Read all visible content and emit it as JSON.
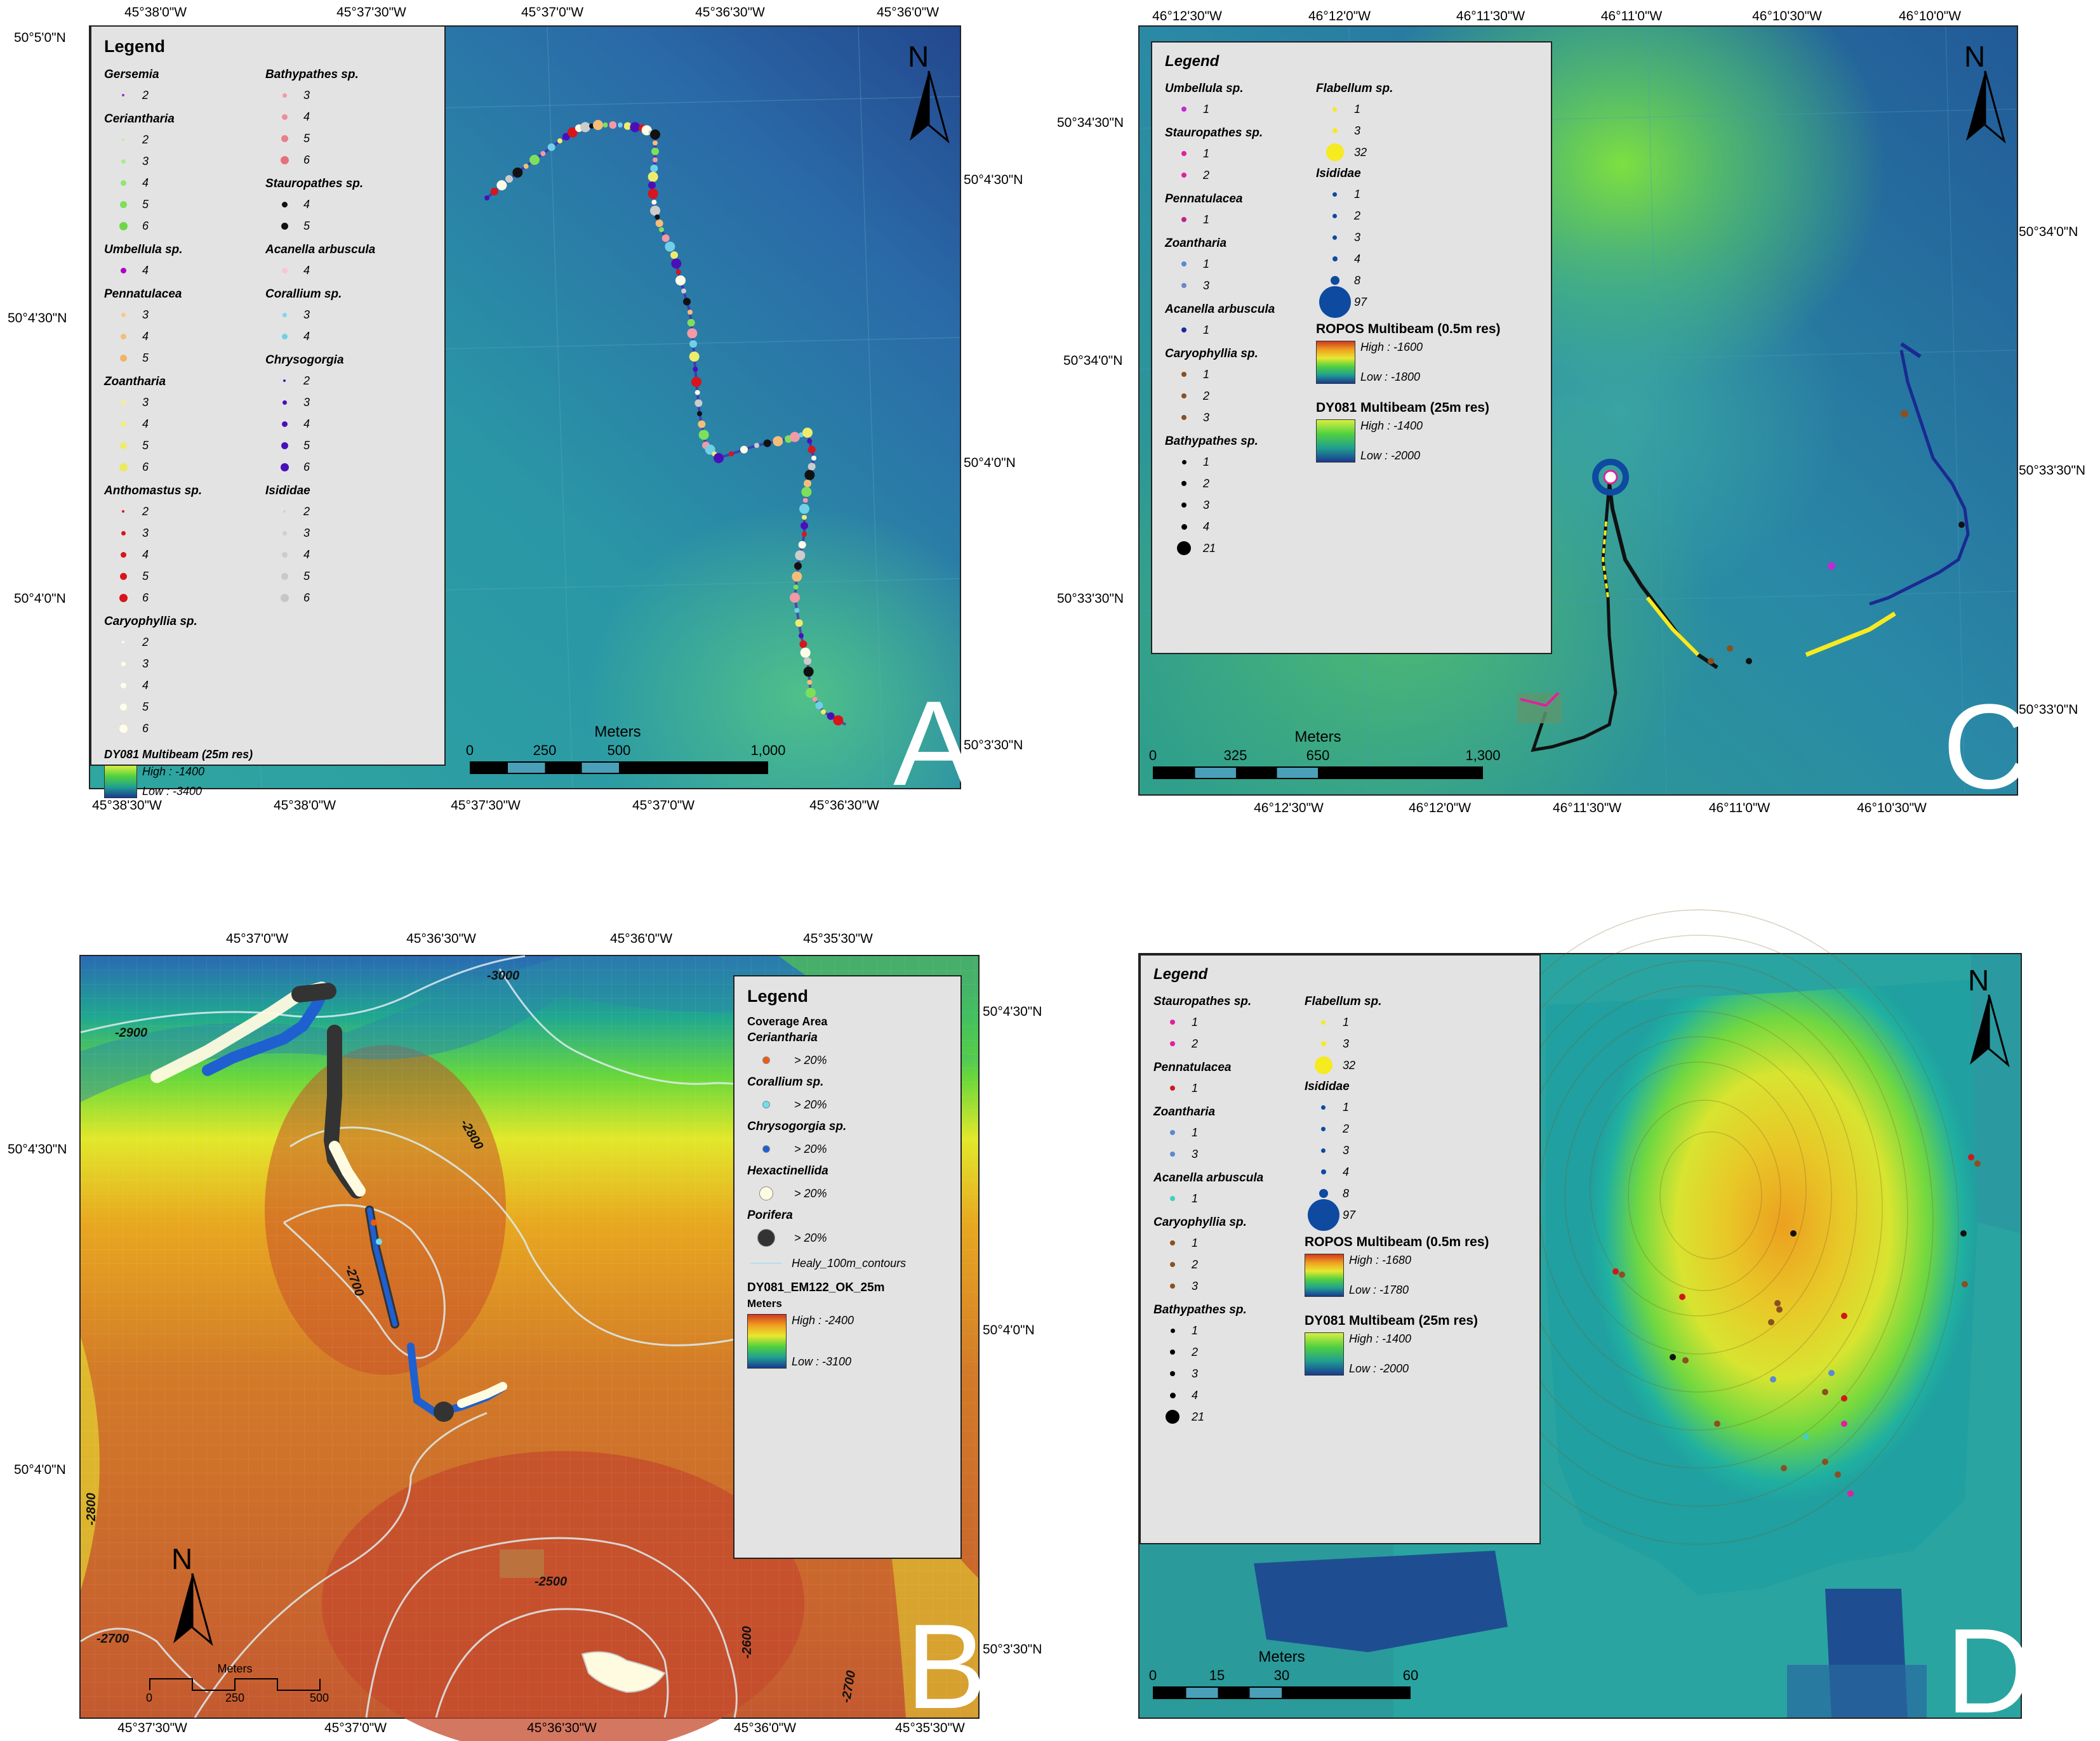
{
  "panelA": {
    "letter": "A",
    "top_lon": [
      "45°38'0\"W",
      "45°37'30\"W",
      "45°37'0\"W",
      "45°36'30\"W",
      "45°36'0\"W"
    ],
    "bottom_lon": [
      "45°38'30\"W",
      "45°38'0\"W",
      "45°37'30\"W",
      "45°37'0\"W",
      "45°36'30\"W"
    ],
    "left_lat": [
      "50°5'0\"N",
      "50°4'30\"N",
      "50°4'0\"N"
    ],
    "right_lat": [
      "50°4'30\"N",
      "50°4'0\"N",
      "50°3'30\"N"
    ],
    "legend": {
      "title": "Legend",
      "col1": [
        {
          "name": "Gersemia",
          "items": [
            {
              "v": "2",
              "c": "#9b2fc9",
              "s": 4
            }
          ]
        },
        {
          "name": "Ceriantharia",
          "items": [
            {
              "v": "2",
              "c": "#b8f0a0",
              "s": 4
            },
            {
              "v": "3",
              "c": "#a8ec8c",
              "s": 7
            },
            {
              "v": "4",
              "c": "#90e670",
              "s": 9
            },
            {
              "v": "5",
              "c": "#7ee05a",
              "s": 11
            },
            {
              "v": "6",
              "c": "#6cd844",
              "s": 13
            }
          ]
        },
        {
          "name": "Umbellula sp.",
          "items": [
            {
              "v": "4",
              "c": "#b000c8",
              "s": 9
            }
          ]
        },
        {
          "name": "Pennatulacea",
          "items": [
            {
              "v": "3",
              "c": "#f6c88a",
              "s": 7
            },
            {
              "v": "4",
              "c": "#f4be78",
              "s": 9
            },
            {
              "v": "5",
              "c": "#f2b466",
              "s": 11
            }
          ]
        },
        {
          "name": "Zoantharia",
          "items": [
            {
              "v": "3",
              "c": "#f2f08a",
              "s": 7
            },
            {
              "v": "4",
              "c": "#f0ee7c",
              "s": 9
            },
            {
              "v": "5",
              "c": "#eeec6c",
              "s": 11
            },
            {
              "v": "6",
              "c": "#ecea5c",
              "s": 13
            }
          ]
        },
        {
          "name": "Anthomastus sp.",
          "items": [
            {
              "v": "2",
              "c": "#d8141c",
              "s": 4
            },
            {
              "v": "3",
              "c": "#d8141c",
              "s": 7
            },
            {
              "v": "4",
              "c": "#d8141c",
              "s": 9
            },
            {
              "v": "5",
              "c": "#d8141c",
              "s": 11
            },
            {
              "v": "6",
              "c": "#d8141c",
              "s": 13
            }
          ]
        },
        {
          "name": "Caryophyllia sp.",
          "items": [
            {
              "v": "2",
              "c": "#fffde8",
              "s": 4
            },
            {
              "v": "3",
              "c": "#fffde8",
              "s": 7
            },
            {
              "v": "4",
              "c": "#fffde8",
              "s": 9
            },
            {
              "v": "5",
              "c": "#fffde8",
              "s": 11
            },
            {
              "v": "6",
              "c": "#fffde8",
              "s": 13
            }
          ]
        }
      ],
      "col2": [
        {
          "name": "Bathypathes sp.",
          "items": [
            {
              "v": "3",
              "c": "#f29aa6",
              "s": 7
            },
            {
              "v": "4",
              "c": "#ee8c98",
              "s": 9
            },
            {
              "v": "5",
              "c": "#ea7e8a",
              "s": 11
            },
            {
              "v": "6",
              "c": "#e6707c",
              "s": 13
            }
          ]
        },
        {
          "name": "Stauropathes sp.",
          "items": [
            {
              "v": "4",
              "c": "#111111",
              "s": 9
            },
            {
              "v": "5",
              "c": "#111111",
              "s": 11
            }
          ]
        },
        {
          "name": "Acanella arbuscula",
          "items": [
            {
              "v": "4",
              "c": "#f8c4dc",
              "s": 9
            }
          ]
        },
        {
          "name": "Corallium sp.",
          "items": [
            {
              "v": "3",
              "c": "#7cd8ec",
              "s": 7
            },
            {
              "v": "4",
              "c": "#70d0e8",
              "s": 9
            }
          ]
        },
        {
          "name": "Chrysogorgia",
          "items": [
            {
              "v": "2",
              "c": "#4a10b8",
              "s": 4
            },
            {
              "v": "3",
              "c": "#4a10b8",
              "s": 7
            },
            {
              "v": "4",
              "c": "#4a10b8",
              "s": 9
            },
            {
              "v": "5",
              "c": "#4a10b8",
              "s": 11
            },
            {
              "v": "6",
              "c": "#4a10b8",
              "s": 13
            }
          ]
        },
        {
          "name": "Isididae",
          "items": [
            {
              "v": "2",
              "c": "#d2d2d2",
              "s": 4
            },
            {
              "v": "3",
              "c": "#cfcfcf",
              "s": 7
            },
            {
              "v": "4",
              "c": "#cccccc",
              "s": 9
            },
            {
              "v": "5",
              "c": "#c9c9c9",
              "s": 11
            },
            {
              "v": "6",
              "c": "#c6c6c6",
              "s": 13
            }
          ]
        }
      ],
      "ramp": {
        "title": "DY081 Multibeam (25m res)",
        "high": "High : -1400",
        "low": "Low : -3400"
      }
    },
    "scale": {
      "units": "Meters",
      "ticks": [
        "0",
        "250",
        "500",
        "1,000"
      ]
    }
  },
  "panelB": {
    "letter": "B",
    "top_lon": [
      "45°37'0\"W",
      "45°36'30\"W",
      "45°36'0\"W",
      "45°35'30\"W"
    ],
    "bottom_lon": [
      "45°37'30\"W",
      "45°37'0\"W",
      "45°36'30\"W",
      "45°36'0\"W",
      "45°35'30\"W"
    ],
    "left_lat": [
      "50°4'30\"N",
      "50°4'0\"N"
    ],
    "right_lat": [
      "50°4'30\"N",
      "50°4'0\"N",
      "50°3'30\"N"
    ],
    "contours": [
      "-3000",
      "-2900",
      "-2800",
      "-2700",
      "-2800",
      "-2700",
      "-2500",
      "-2600",
      "-2700"
    ],
    "legend": {
      "title": "Legend",
      "subtitle": "Coverage Area",
      "groups": [
        {
          "name": "Ceriantharia",
          "label": "> 20%",
          "c": "#f05a10",
          "s": 10
        },
        {
          "name": "Corallium sp.",
          "label": "> 20%",
          "c": "#6ce0f0",
          "s": 10
        },
        {
          "name": "Chrysogorgia sp.",
          "label": "> 20%",
          "c": "#1e60d0",
          "s": 10
        },
        {
          "name": "Hexactinellida",
          "label": "> 20%",
          "c": "#fffbe0",
          "s": 20
        },
        {
          "name": "Porifera",
          "label": "> 20%",
          "c": "#333333",
          "s": 26
        }
      ],
      "contour_label": "Healy_100m_contours",
      "ramp": {
        "title": "DY081_EM122_OK_25m",
        "units": "Meters",
        "high": "High : -2400",
        "low": "Low : -3100"
      }
    },
    "scale": {
      "units": "Meters",
      "ticks": [
        "0",
        "250",
        "500"
      ]
    }
  },
  "panelC": {
    "letter": "C",
    "top_lon": [
      "46°12'30\"W",
      "46°12'0\"W",
      "46°11'30\"W",
      "46°11'0\"W",
      "46°10'30\"W",
      "46°10'0\"W"
    ],
    "bottom_lon": [
      "46°12'30\"W",
      "46°12'0\"W",
      "46°11'30\"W",
      "46°11'0\"W",
      "46°10'30\"W"
    ],
    "left_lat": [
      "50°34'30\"N",
      "50°34'0\"N",
      "50°33'30\"N"
    ],
    "right_lat": [
      "50°34'0\"N",
      "50°33'30\"N",
      "50°33'0\"N"
    ],
    "legend": {
      "title": "Legend",
      "col1": [
        {
          "name": "Umbellula sp.",
          "items": [
            {
              "v": "1",
              "c": "#c02bd0",
              "s": 8
            }
          ]
        },
        {
          "name": "Stauropathes sp.",
          "items": [
            {
              "v": "1",
              "c": "#e020a0",
              "s": 8
            },
            {
              "v": "2",
              "c": "#e020a0",
              "s": 8
            }
          ]
        },
        {
          "name": "Pennatulacea",
          "items": [
            {
              "v": "1",
              "c": "#c02090",
              "s": 8
            }
          ]
        },
        {
          "name": "Zoantharia",
          "items": [
            {
              "v": "1",
              "c": "#5a8ad0",
              "s": 8
            },
            {
              "v": "3",
              "c": "#6a88c8",
              "s": 8
            }
          ]
        },
        {
          "name": "Acanella arbuscula",
          "items": [
            {
              "v": "1",
              "c": "#1a2aa0",
              "s": 8
            }
          ]
        },
        {
          "name": "Caryophyllia sp.",
          "items": [
            {
              "v": "1",
              "c": "#8a5020",
              "s": 8
            },
            {
              "v": "2",
              "c": "#8a5020",
              "s": 8
            },
            {
              "v": "3",
              "c": "#8a5020",
              "s": 8
            }
          ]
        },
        {
          "name": "Bathypathes sp.",
          "items": [
            {
              "v": "1",
              "c": "#000000",
              "s": 7
            },
            {
              "v": "2",
              "c": "#000000",
              "s": 8
            },
            {
              "v": "3",
              "c": "#000000",
              "s": 8
            },
            {
              "v": "4",
              "c": "#000000",
              "s": 9
            },
            {
              "v": "21",
              "c": "#000000",
              "s": 22
            }
          ]
        }
      ],
      "col2": [
        {
          "name": "Flabellum sp.",
          "items": [
            {
              "v": "1",
              "c": "#f6ea20",
              "s": 7
            },
            {
              "v": "3",
              "c": "#f6ea20",
              "s": 8
            },
            {
              "v": "32",
              "c": "#f6ea20",
              "s": 28
            }
          ]
        },
        {
          "name": "Isididae",
          "items": [
            {
              "v": "1",
              "c": "#0e4aa0",
              "s": 7
            },
            {
              "v": "2",
              "c": "#0e4aa0",
              "s": 7
            },
            {
              "v": "3",
              "c": "#0e4aa0",
              "s": 7
            },
            {
              "v": "4",
              "c": "#0e4aa0",
              "s": 8
            },
            {
              "v": "8",
              "c": "#0e4aa0",
              "s": 14
            },
            {
              "v": "97",
              "c": "#0e4aa0",
              "s": 50
            }
          ]
        }
      ],
      "ramp1": {
        "title": "ROPOS Multibeam (0.5m res)",
        "high": "High : -1600",
        "low": "Low : -1800"
      },
      "ramp2": {
        "title": "DY081 Multibeam (25m res)",
        "high": "High : -1400",
        "low": "Low : -2000"
      }
    },
    "scale": {
      "units": "Meters",
      "ticks": [
        "0",
        "325",
        "650",
        "1,300"
      ]
    }
  },
  "panelD": {
    "letter": "D",
    "legend": {
      "title": "Legend",
      "col1": [
        {
          "name": "Stauropathes sp.",
          "items": [
            {
              "v": "1",
              "c": "#e020a0",
              "s": 8
            },
            {
              "v": "2",
              "c": "#e020a0",
              "s": 8
            }
          ]
        },
        {
          "name": "Pennatulacea",
          "items": [
            {
              "v": "1",
              "c": "#d01818",
              "s": 8
            }
          ]
        },
        {
          "name": "Zoantharia",
          "items": [
            {
              "v": "1",
              "c": "#5a8ad0",
              "s": 8
            },
            {
              "v": "3",
              "c": "#5a8ad0",
              "s": 8
            }
          ]
        },
        {
          "name": "Acanella arbuscula",
          "items": [
            {
              "v": "1",
              "c": "#40d0c0",
              "s": 8
            }
          ]
        },
        {
          "name": "Caryophyllia sp.",
          "items": [
            {
              "v": "1",
              "c": "#8a5020",
              "s": 8
            },
            {
              "v": "2",
              "c": "#8a5020",
              "s": 8
            },
            {
              "v": "3",
              "c": "#8a5020",
              "s": 8
            }
          ]
        },
        {
          "name": "Bathypathes sp.",
          "items": [
            {
              "v": "1",
              "c": "#000000",
              "s": 7
            },
            {
              "v": "2",
              "c": "#000000",
              "s": 8
            },
            {
              "v": "3",
              "c": "#000000",
              "s": 8
            },
            {
              "v": "4",
              "c": "#000000",
              "s": 9
            },
            {
              "v": "21",
              "c": "#000000",
              "s": 22
            }
          ]
        }
      ],
      "col2": [
        {
          "name": "Flabellum sp.",
          "items": [
            {
              "v": "1",
              "c": "#f6ea20",
              "s": 7
            },
            {
              "v": "3",
              "c": "#f6ea20",
              "s": 8
            },
            {
              "v": "32",
              "c": "#f6ea20",
              "s": 28
            }
          ]
        },
        {
          "name": "Isididae",
          "items": [
            {
              "v": "1",
              "c": "#0e4aa0",
              "s": 7
            },
            {
              "v": "2",
              "c": "#0e4aa0",
              "s": 7
            },
            {
              "v": "3",
              "c": "#0e4aa0",
              "s": 7
            },
            {
              "v": "4",
              "c": "#0e4aa0",
              "s": 8
            },
            {
              "v": "8",
              "c": "#0e4aa0",
              "s": 14
            },
            {
              "v": "97",
              "c": "#0e4aa0",
              "s": 50
            }
          ]
        }
      ],
      "ramp1": {
        "title": "ROPOS Multibeam (0.5m res)",
        "high": "High : -1680",
        "low": "Low : -1780"
      },
      "ramp2": {
        "title": "DY081 Multibeam (25m res)",
        "high": "High : -1400",
        "low": "Low : -2000"
      }
    },
    "scale": {
      "units": "Meters",
      "ticks": [
        "0",
        "15",
        "30",
        "60"
      ]
    }
  },
  "north_label": "N",
  "colors": {
    "deep_blue": "#1f4e8c",
    "teal": "#2a9aa8",
    "green": "#7ed84a",
    "orange": "#c8502a"
  }
}
